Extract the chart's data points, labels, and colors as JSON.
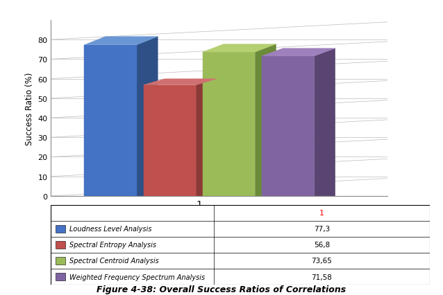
{
  "title": "Figure 4-38: Overall Success Ratios of Correlations",
  "ylabel": "Success Ratio (%)",
  "series": [
    {
      "label": "Loudness Level Analysis",
      "value": 77.3,
      "color": "#4472C4",
      "dark": "#2E5086",
      "top": "#6A96D4"
    },
    {
      "label": "Spectral Entropy Analysis",
      "value": 56.8,
      "color": "#C0504D",
      "dark": "#8B3A38",
      "top": "#D07070"
    },
    {
      "label": "Spectral Centroid Analysis",
      "value": 73.65,
      "color": "#9BBB59",
      "dark": "#6B8A3A",
      "top": "#B5D070"
    },
    {
      "label": "Weighted Frequency Spectrum Analysis",
      "value": 71.58,
      "color": "#8064A2",
      "dark": "#5A4572",
      "top": "#9E80BC"
    }
  ],
  "table_values": [
    "77,3",
    "56,8",
    "73,65",
    "71,58"
  ],
  "table_col_header": "1",
  "ylim": [
    0,
    90
  ],
  "yticks": [
    0,
    10,
    20,
    30,
    40,
    50,
    60,
    70,
    80
  ],
  "background_color": "#FFFFFF",
  "grid_color": "#BBBBBB"
}
